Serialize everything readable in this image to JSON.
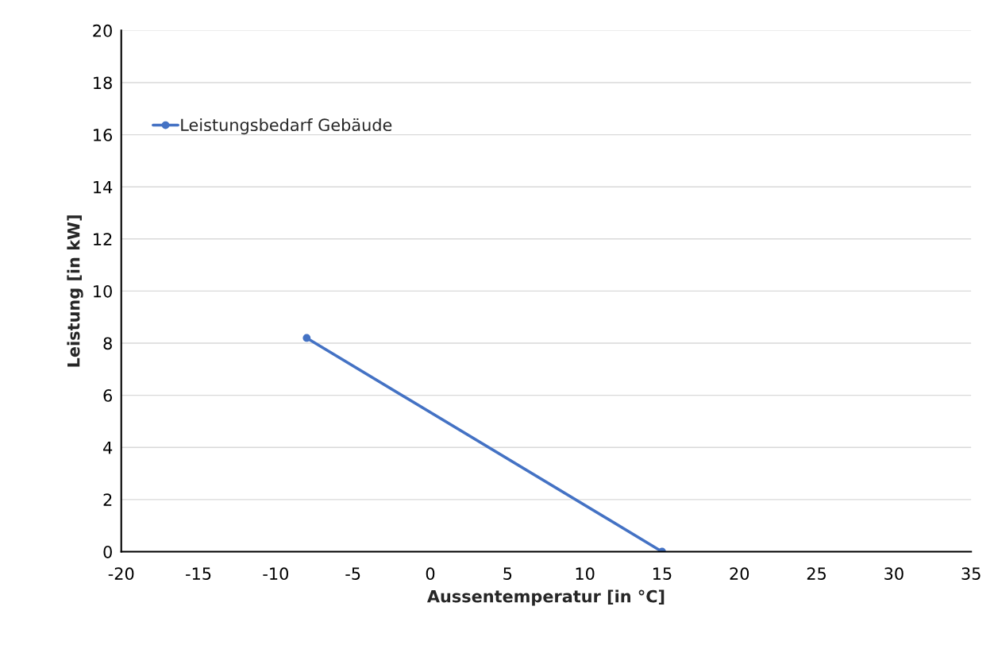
{
  "chart_data": {
    "type": "line",
    "xlabel": "Aussentemperatur [in °C]",
    "ylabel": "Leistung [in kW]",
    "x": [
      -8,
      15
    ],
    "series": [
      {
        "name": "Leistungsbedarf Gebäude",
        "color": "#4472c4",
        "values": [
          8.2,
          0
        ]
      }
    ],
    "xlim": [
      -20,
      35
    ],
    "xticks": [
      -20,
      -15,
      -10,
      -5,
      0,
      5,
      10,
      15,
      20,
      25,
      30,
      35
    ],
    "ylim": [
      0,
      20
    ],
    "yticks": [
      0,
      2,
      4,
      6,
      8,
      10,
      12,
      14,
      16,
      18,
      20
    ],
    "grid": "y",
    "legend": "top left",
    "marker": "circle",
    "line_style": "solid"
  }
}
